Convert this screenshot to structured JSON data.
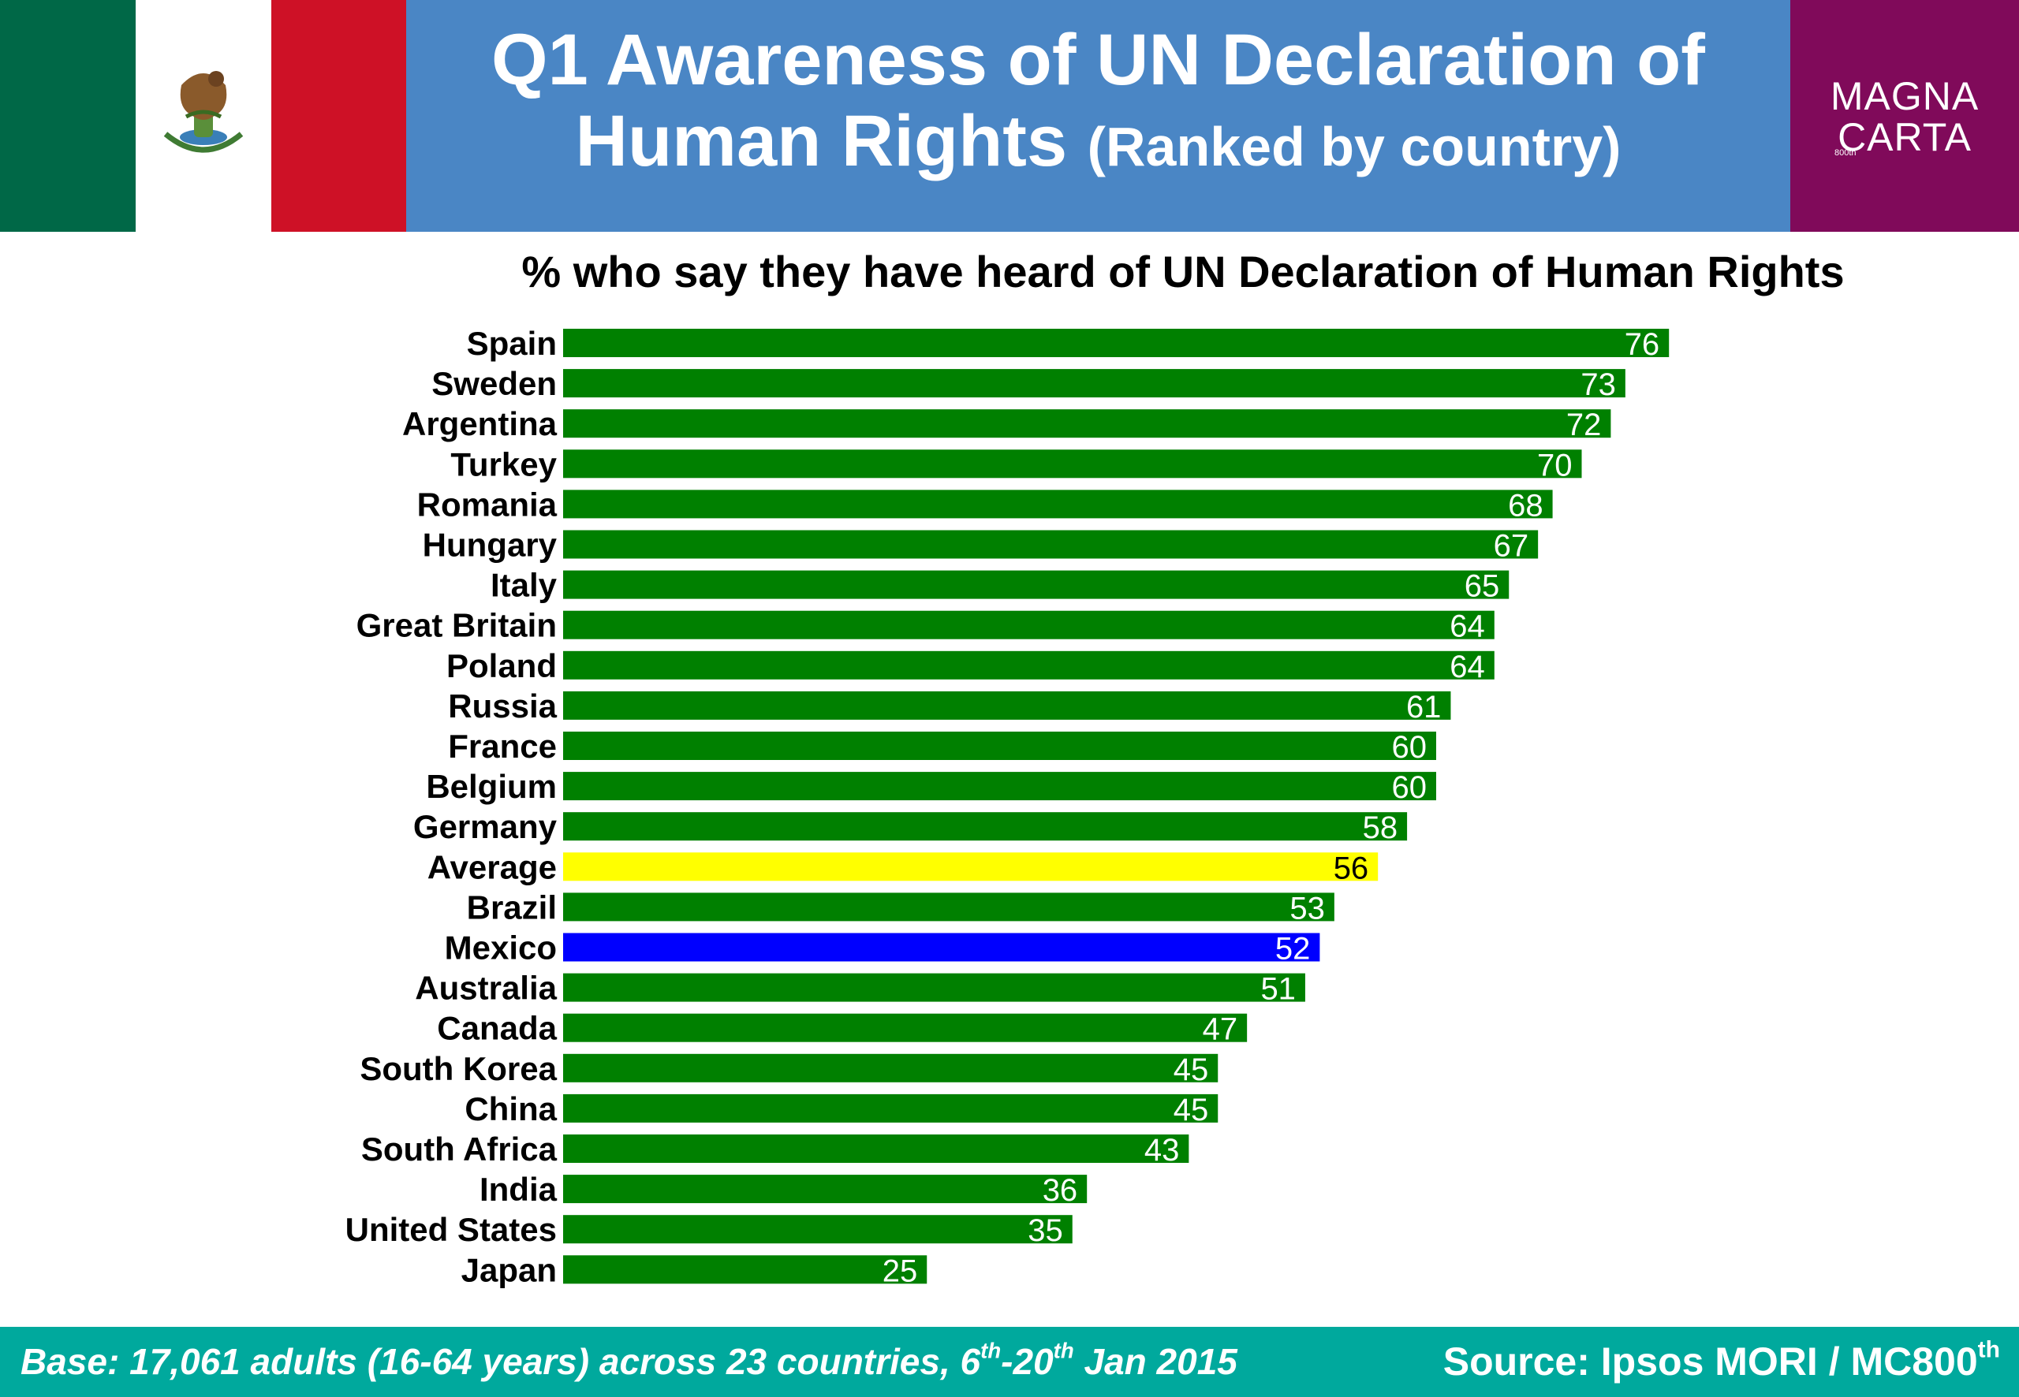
{
  "header": {
    "title_line1": "Q1 Awareness of UN Declaration of",
    "title_line2_main": "Human Rights",
    "title_line2_small": "(Ranked by country)",
    "logo_line1": "MAGNA",
    "logo_line2": "CARTA",
    "logo_tiny": "800th"
  },
  "colors": {
    "title_band": "#4a86c5",
    "logo_band": "#800a5a",
    "footer_band": "#00a99d",
    "bar_default": "#008000",
    "bar_average": "#ffff00",
    "bar_mexico": "#0000ff",
    "flag_green": "#006847",
    "flag_white": "#ffffff",
    "flag_red": "#ce1126"
  },
  "icons": {
    "flag": "mexico-flag-icon",
    "emblem": "eagle-emblem-icon"
  },
  "chart_data": {
    "type": "bar",
    "orientation": "horizontal",
    "title": "% who say they have heard of UN Declaration of Human Rights",
    "categories": [
      "Spain",
      "Sweden",
      "Argentina",
      "Turkey",
      "Romania",
      "Hungary",
      "Italy",
      "Great Britain",
      "Poland",
      "Russia",
      "France",
      "Belgium",
      "Germany",
      "Average",
      "Brazil",
      "Mexico",
      "Australia",
      "Canada",
      "South Korea",
      "China",
      "South Africa",
      "India",
      "United States",
      "Japan"
    ],
    "values": [
      76,
      73,
      72,
      70,
      68,
      67,
      65,
      64,
      64,
      61,
      60,
      60,
      58,
      56,
      53,
      52,
      51,
      47,
      45,
      45,
      43,
      36,
      35,
      25
    ],
    "highlight": {
      "Average": "#ffff00",
      "Mexico": "#0000ff"
    },
    "xlim": [
      0,
      100
    ],
    "data_labels": true,
    "grid": false,
    "legend": "none"
  },
  "footer": {
    "base_prefix": "Base: 17,061 adults (16-64 years) across 23 countries, 6",
    "base_sup1": "th",
    "base_mid": "-20",
    "base_sup2": "th",
    "base_suffix": " Jan 2015",
    "source_main": "Source: Ipsos MORI / MC800",
    "source_sup": "th"
  }
}
